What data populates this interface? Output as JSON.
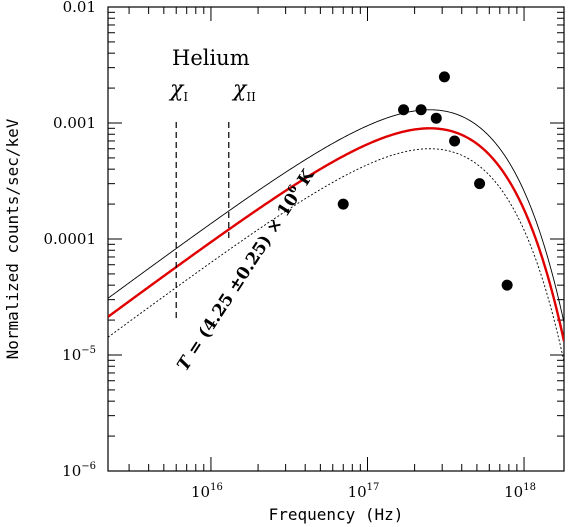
{
  "chart_data": {
    "type": "scatter",
    "title": "",
    "xlabel": "Frequency (Hz)",
    "ylabel": "Normalized counts/sec/keV",
    "x_scale": "log",
    "y_scale": "log",
    "xlim": [
      2200000000000000.0,
      1.8e+18
    ],
    "ylim": [
      1e-06,
      0.01
    ],
    "x_tick_labels": [
      {
        "value": 1e+16,
        "base": "10",
        "exp": "16"
      },
      {
        "value": 1e+17,
        "base": "10",
        "exp": "17"
      },
      {
        "value": 1e+18,
        "base": "10",
        "exp": "18"
      }
    ],
    "y_tick_labels": [
      {
        "value": 0.01,
        "text": "0.01"
      },
      {
        "value": 0.001,
        "text": "0.001"
      },
      {
        "value": 0.0001,
        "text": "0.0001"
      },
      {
        "value": 1e-05,
        "base": "10",
        "exp": "−5"
      },
      {
        "value": 1e-06,
        "base": "10",
        "exp": "−6"
      }
    ],
    "grid": false,
    "series": [
      {
        "style": "points",
        "color": "#000000",
        "x": [
          7e+16,
          1.7e+17,
          2.2e+17,
          2.75e+17,
          3.1e+17,
          3.6e+17,
          5.2e+17,
          7.8e+17
        ],
        "y": [
          0.0002,
          0.0013,
          0.0013,
          0.0011,
          0.0025,
          0.0007,
          0.0003,
          4e-05
        ]
      },
      {
        "style": "line",
        "color": "#e00000",
        "model": "blackbody",
        "peak_frequency": 2.5e+17,
        "peak_value": 0.0009
      },
      {
        "style": "line",
        "color": "#000000",
        "model": "blackbody",
        "peak_frequency": 2.5e+17,
        "peak_value": 0.0013
      },
      {
        "style": "line",
        "color": "#000000",
        "model": "blackbody",
        "peak_frequency": 2.5e+17,
        "peak_value": 0.0006
      }
    ],
    "annotations": {
      "element": "Helium",
      "chi_symbol": "χ",
      "chi_1_sub": "I",
      "chi_2_sub": "II",
      "chi_1_frequency": 6000000000000000.0,
      "chi_2_frequency": 1.3e+16,
      "temperature_parts": {
        "T": "T",
        "eq": " = (4.25 ±0.25) × 10",
        "exp": "6",
        "unit": " K"
      }
    }
  }
}
